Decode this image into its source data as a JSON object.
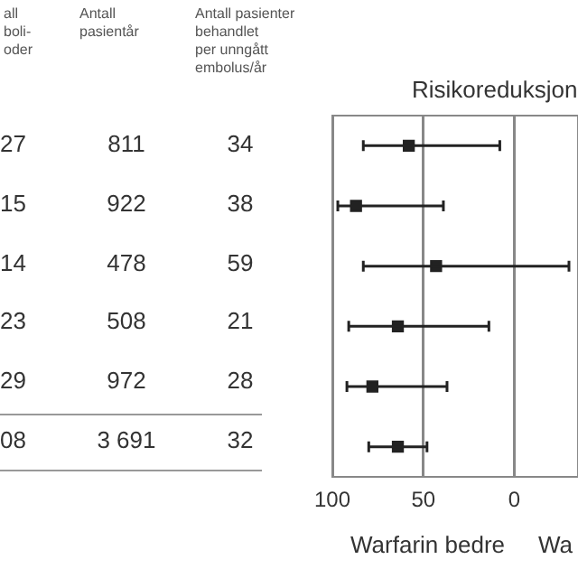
{
  "chart_data": {
    "type": "scatter",
    "title": "Risikoreduksjon",
    "xlabel": "Warfarin bedre",
    "categories": [
      null,
      null,
      null,
      null,
      null,
      null
    ],
    "values": [
      58,
      87,
      43,
      64,
      78,
      64
    ],
    "errors": [
      [
        8,
        83
      ],
      [
        39,
        97
      ],
      [
        -30,
        83
      ],
      [
        14,
        91
      ],
      [
        37,
        92
      ],
      [
        48,
        80
      ]
    ],
    "color": "#222222",
    "orientation": "horizontal",
    "marker": "square",
    "xlim": [
      100,
      -30
    ],
    "xticks": [
      100,
      50,
      0
    ],
    "grid": "x",
    "annotations": [
      "all\nboli-\noder",
      "Antall\npasientår",
      "Antall pasienter\nbehandlet\nper unngått\nembolus/år",
      "27",
      "811",
      "34",
      "15",
      "922",
      "38",
      "14",
      "478",
      "59",
      "23",
      "508",
      "21",
      "29",
      "972",
      "28",
      "08",
      "3 691",
      "32",
      "Wa"
    ]
  }
}
